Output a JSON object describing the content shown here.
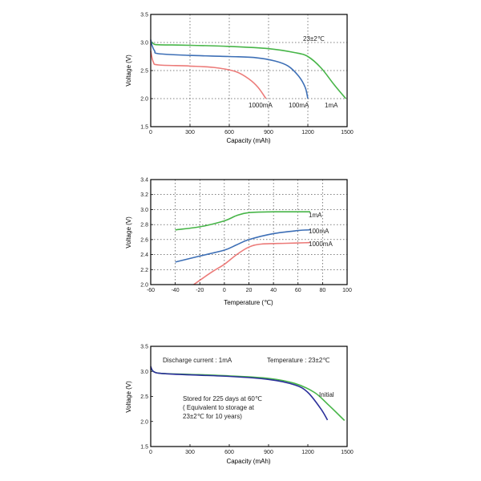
{
  "chart_data": [
    {
      "type": "line",
      "xlabel": "Capacity (mAh)",
      "ylabel": "Voltage (V)",
      "xlim": [
        0,
        1500
      ],
      "ylim": [
        1.5,
        3.5
      ],
      "x_ticks": [
        0,
        300,
        600,
        900,
        1200,
        1500
      ],
      "x_tick_labels": [
        "0",
        "300",
        "600",
        "900",
        "1200",
        "1500"
      ],
      "y_ticks": [
        1.5,
        2.0,
        2.5,
        3.0,
        3.5
      ],
      "y_tick_labels": [
        "1.5",
        "2.0",
        "2.5",
        "3.0",
        "3.5"
      ],
      "grid": true,
      "annotation": "23±2℃",
      "series": [
        {
          "name": "1mA",
          "color": "#47b548",
          "points": [
            [
              0,
              3.02
            ],
            [
              20,
              2.98
            ],
            [
              60,
              2.96
            ],
            [
              300,
              2.95
            ],
            [
              600,
              2.93
            ],
            [
              900,
              2.89
            ],
            [
              1100,
              2.82
            ],
            [
              1200,
              2.75
            ],
            [
              1300,
              2.55
            ],
            [
              1400,
              2.25
            ],
            [
              1490,
              2.0
            ]
          ]
        },
        {
          "name": "100mA",
          "color": "#3d6fb6",
          "points": [
            [
              0,
              3.05
            ],
            [
              10,
              2.95
            ],
            [
              30,
              2.85
            ],
            [
              60,
              2.8
            ],
            [
              300,
              2.77
            ],
            [
              600,
              2.75
            ],
            [
              800,
              2.73
            ],
            [
              950,
              2.67
            ],
            [
              1050,
              2.58
            ],
            [
              1130,
              2.4
            ],
            [
              1180,
              2.2
            ],
            [
              1200,
              2.0
            ]
          ]
        },
        {
          "name": "1000mA",
          "color": "#ec7b79",
          "points": [
            [
              0,
              2.85
            ],
            [
              20,
              2.65
            ],
            [
              60,
              2.6
            ],
            [
              300,
              2.58
            ],
            [
              500,
              2.55
            ],
            [
              650,
              2.48
            ],
            [
              750,
              2.35
            ],
            [
              820,
              2.2
            ],
            [
              880,
              2.0
            ]
          ]
        }
      ]
    },
    {
      "type": "line",
      "xlabel": "Temperature (℃)",
      "ylabel": "Voltage (V)",
      "xlim": [
        -60,
        100
      ],
      "ylim": [
        2.0,
        3.4
      ],
      "x_ticks": [
        -60,
        -40,
        -20,
        0,
        20,
        40,
        60,
        80,
        100
      ],
      "x_tick_labels": [
        "-60",
        "-40",
        "-20",
        "0",
        "20",
        "40",
        "60",
        "80",
        "100"
      ],
      "y_ticks": [
        2.0,
        2.2,
        2.4,
        2.6,
        2.8,
        3.0,
        3.2,
        3.4
      ],
      "y_tick_labels": [
        "2.0",
        "2.2",
        "2.4",
        "2.6",
        "2.8",
        "3.0",
        "3.2",
        "3.4"
      ],
      "grid": true,
      "series": [
        {
          "name": "1mA",
          "color": "#47b548",
          "points": [
            [
              -40,
              2.73
            ],
            [
              -20,
              2.77
            ],
            [
              0,
              2.85
            ],
            [
              10,
              2.92
            ],
            [
              20,
              2.96
            ],
            [
              40,
              2.97
            ],
            [
              60,
              2.97
            ],
            [
              70,
              2.97
            ]
          ]
        },
        {
          "name": "100mA",
          "color": "#3d6fb6",
          "points": [
            [
              -40,
              2.3
            ],
            [
              -20,
              2.38
            ],
            [
              0,
              2.46
            ],
            [
              10,
              2.53
            ],
            [
              20,
              2.6
            ],
            [
              40,
              2.68
            ],
            [
              60,
              2.72
            ],
            [
              70,
              2.73
            ]
          ]
        },
        {
          "name": "1000mA",
          "color": "#ec7b79",
          "points": [
            [
              -25,
              2.0
            ],
            [
              -10,
              2.17
            ],
            [
              0,
              2.27
            ],
            [
              10,
              2.4
            ],
            [
              20,
              2.5
            ],
            [
              30,
              2.54
            ],
            [
              50,
              2.55
            ],
            [
              70,
              2.56
            ]
          ]
        }
      ]
    },
    {
      "type": "line",
      "xlabel": "Capacity (mAh)",
      "ylabel": "Voltage (V)",
      "xlim": [
        0,
        1500
      ],
      "ylim": [
        1.5,
        3.5
      ],
      "x_ticks": [
        0,
        300,
        600,
        900,
        1200,
        1500
      ],
      "x_tick_labels": [
        "0",
        "300",
        "600",
        "900",
        "1200",
        "1500"
      ],
      "y_ticks": [
        1.5,
        2.0,
        2.5,
        3.0,
        3.5
      ],
      "y_tick_labels": [
        "1.5",
        "2.0",
        "2.5",
        "3.0",
        "3.5"
      ],
      "grid": false,
      "annotation_current": "Discharge current : 1mA",
      "annotation_temperature": "Temperature : 23±2℃",
      "annotation_stored": [
        "Stored for 225 days at 60℃",
        "( Equivalent to storage at",
        "23±2℃ for 10 years)"
      ],
      "series": [
        {
          "name": "Initial",
          "color": "#47b548",
          "points": [
            [
              0,
              3.08
            ],
            [
              20,
              3.0
            ],
            [
              80,
              2.96
            ],
            [
              300,
              2.94
            ],
            [
              600,
              2.91
            ],
            [
              900,
              2.86
            ],
            [
              1100,
              2.76
            ],
            [
              1250,
              2.58
            ],
            [
              1350,
              2.35
            ],
            [
              1480,
              2.02
            ]
          ]
        },
        {
          "name": "Stored",
          "color": "#2b2f9a",
          "points": [
            [
              0,
              3.1
            ],
            [
              20,
              3.0
            ],
            [
              80,
              2.96
            ],
            [
              300,
              2.93
            ],
            [
              600,
              2.9
            ],
            [
              900,
              2.84
            ],
            [
              1100,
              2.73
            ],
            [
              1200,
              2.58
            ],
            [
              1300,
              2.25
            ],
            [
              1350,
              2.03
            ]
          ]
        }
      ]
    }
  ]
}
